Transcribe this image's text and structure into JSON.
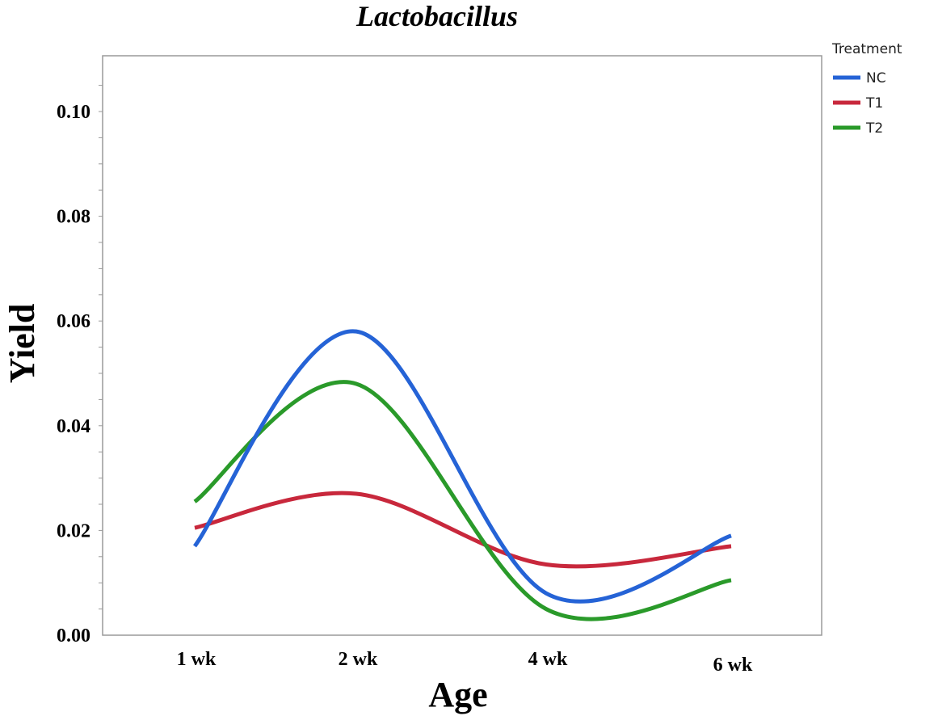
{
  "chart_data": {
    "type": "line",
    "title": "Lactobacillus",
    "xlabel": "Age",
    "ylabel": "Yield",
    "categories": [
      "1 wk",
      "2 wk",
      "4 wk",
      "6 wk"
    ],
    "yticks": [
      "0.00",
      "0.02",
      "0.04",
      "0.06",
      "0.08",
      "0.10"
    ],
    "ylim": [
      0,
      0.11
    ],
    "grid": false,
    "legend": {
      "title": "Treatment",
      "placement": "right"
    },
    "series": [
      {
        "name": "NC",
        "color": "#2563d6",
        "values": [
          0.017,
          0.058,
          0.008,
          0.019
        ]
      },
      {
        "name": "T1",
        "color": "#c8283c",
        "values": [
          0.0205,
          0.027,
          0.0135,
          0.017
        ]
      },
      {
        "name": "T2",
        "color": "#2a9a2a",
        "values": [
          0.0255,
          0.048,
          0.005,
          0.0105
        ]
      }
    ]
  }
}
